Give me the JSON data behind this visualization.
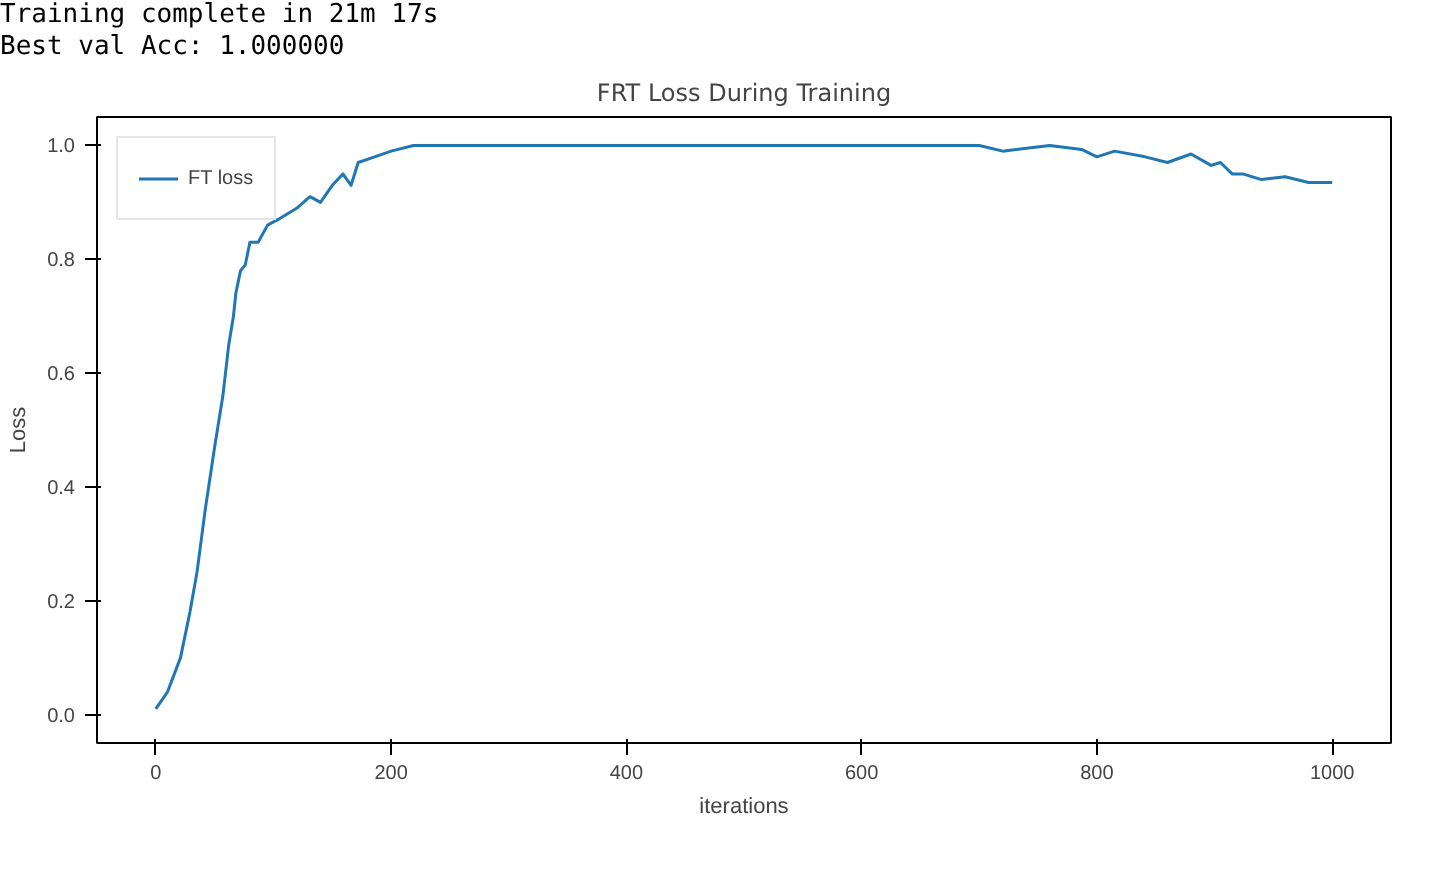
{
  "chart_data": {
    "type": "line",
    "title": "FRT Loss During Training",
    "xlabel": "iterations",
    "ylabel": "Loss",
    "annotations": [
      "Training complete in 21m 17s",
      "Best val Acc: 1.000000"
    ],
    "x": [
      0,
      10,
      21,
      29,
      35,
      42,
      50,
      57,
      62,
      66,
      68,
      72,
      76,
      80,
      87,
      95,
      104,
      112,
      120,
      131,
      140,
      150,
      159,
      166,
      172,
      186,
      200,
      219,
      240,
      260,
      300,
      320,
      360,
      400,
      500,
      600,
      700,
      720,
      760,
      787,
      800,
      815,
      841,
      860,
      880,
      897,
      905,
      915,
      924,
      940,
      960,
      980,
      1000
    ],
    "series": [
      {
        "name": "FT loss",
        "color": "#1f77b4",
        "values": [
          0.01,
          0.04,
          0.1,
          0.18,
          0.25,
          0.36,
          0.47,
          0.56,
          0.65,
          0.7,
          0.74,
          0.78,
          0.79,
          0.83,
          0.83,
          0.86,
          0.87,
          0.88,
          0.89,
          0.91,
          0.9,
          0.93,
          0.95,
          0.93,
          0.97,
          0.98,
          0.99,
          1.0,
          1.0,
          1.0,
          1.0,
          1.0,
          1.0,
          1.0,
          1.0,
          1.0,
          1.0,
          0.99,
          1.0,
          0.993,
          0.98,
          0.99,
          0.98,
          0.97,
          0.985,
          0.965,
          0.97,
          0.95,
          0.95,
          0.94,
          0.945,
          0.935,
          0.935
        ]
      }
    ],
    "xlim": [
      -50,
      1050
    ],
    "ylim": [
      -0.05,
      1.05
    ],
    "xticks": [
      0,
      200,
      400,
      600,
      800,
      1000
    ],
    "yticks": [
      {
        "value": 0,
        "label": "0.0"
      },
      0.2,
      0.4,
      0.6,
      0.8,
      {
        "value": 1,
        "label": "1.0"
      }
    ],
    "legend": "top left",
    "grid": false,
    "line_style": "solid"
  }
}
